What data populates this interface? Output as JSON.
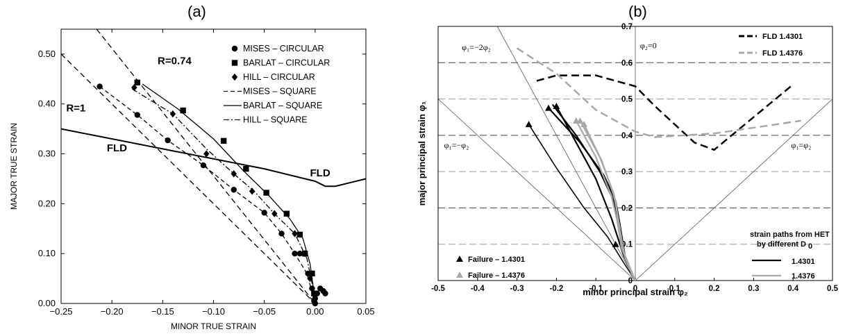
{
  "panels": {
    "a_label": "(a)",
    "b_label": "(b)"
  },
  "chart_data": [
    {
      "type": "scatter",
      "panel": "(a)",
      "xlabel": "MINOR TRUE STRAIN",
      "ylabel": "MAJOR TRUE STRAIN",
      "xlim": [
        -0.25,
        0.05
      ],
      "ylim": [
        0.0,
        0.55
      ],
      "xticks": [
        "−0.25",
        "−0.20",
        "−0.15",
        "−0.10",
        "−0.05",
        "0.00",
        "0.05"
      ],
      "xtick_values": [
        -0.25,
        -0.2,
        -0.15,
        -0.1,
        -0.05,
        0.0,
        0.05
      ],
      "yticks": [
        "0.00",
        "0.10",
        "0.20",
        "0.30",
        "0.40",
        "0.50"
      ],
      "ytick_values": [
        0.0,
        0.1,
        0.2,
        0.3,
        0.4,
        0.5
      ],
      "grid": false,
      "legend_placement": "top-right",
      "annotations": [
        {
          "text": "R=0.74",
          "x": -0.155,
          "y": 0.48
        },
        {
          "text": "R=1",
          "x": -0.245,
          "y": 0.385
        },
        {
          "text": "FLD",
          "x": -0.205,
          "y": 0.305
        },
        {
          "text": "FLD",
          "x": -0.005,
          "y": 0.255
        }
      ],
      "series": [
        {
          "name": "MISES – CIRCULAR",
          "kind": "marker",
          "marker": "circle",
          "points": [
            [
              -0.212,
              0.435
            ],
            [
              -0.175,
              0.378
            ],
            [
              -0.145,
              0.327
            ],
            [
              -0.11,
              0.277
            ],
            [
              -0.08,
              0.228
            ],
            [
              -0.05,
              0.182
            ],
            [
              -0.033,
              0.14
            ],
            [
              -0.02,
              0.1
            ],
            [
              -0.015,
              0.1
            ],
            [
              -0.01,
              0.1
            ],
            [
              -0.007,
              0.06
            ],
            [
              -0.003,
              0.03
            ],
            [
              0.0,
              0.01
            ],
            [
              0.0,
              0.0
            ],
            [
              0.002,
              0.02
            ],
            [
              0.005,
              0.03
            ],
            [
              0.008,
              0.025
            ],
            [
              0.01,
              0.02
            ],
            [
              -0.001,
              0.005
            ]
          ]
        },
        {
          "name": "BARLAT – CIRCULAR",
          "kind": "marker",
          "marker": "square",
          "points": [
            [
              -0.175,
              0.443
            ],
            [
              -0.13,
              0.387
            ],
            [
              -0.09,
              0.326
            ],
            [
              -0.068,
              0.27
            ],
            [
              -0.048,
              0.222
            ],
            [
              -0.028,
              0.18
            ],
            [
              -0.015,
              0.138
            ],
            [
              -0.01,
              0.1
            ],
            [
              -0.003,
              0.06
            ],
            [
              -0.001,
              0.02
            ]
          ]
        },
        {
          "name": "HILL – CIRCULAR",
          "kind": "marker",
          "marker": "diamond",
          "points": [
            [
              -0.178,
              0.433
            ],
            [
              -0.14,
              0.38
            ],
            [
              -0.107,
              0.3
            ],
            [
              -0.08,
              0.26
            ],
            [
              -0.062,
              0.225
            ],
            [
              -0.04,
              0.18
            ],
            [
              -0.02,
              0.14
            ],
            [
              -0.01,
              0.1
            ],
            [
              -0.005,
              0.05
            ]
          ]
        },
        {
          "name": "MISES – SQUARE",
          "kind": "line",
          "dash": "6,4",
          "points": [
            [
              -0.212,
              0.435
            ],
            [
              -0.175,
              0.378
            ],
            [
              -0.145,
              0.327
            ],
            [
              -0.11,
              0.277
            ],
            [
              -0.08,
              0.228
            ],
            [
              -0.05,
              0.182
            ],
            [
              -0.033,
              0.14
            ],
            [
              -0.02,
              0.1
            ],
            [
              -0.008,
              0.06
            ],
            [
              0.0,
              0.0
            ]
          ]
        },
        {
          "name": "BARLAT – SQUARE",
          "kind": "line",
          "dash": "",
          "points": [
            [
              -0.17,
              0.44
            ],
            [
              -0.135,
              0.39
            ],
            [
              -0.1,
              0.33
            ],
            [
              -0.07,
              0.265
            ],
            [
              -0.045,
              0.215
            ],
            [
              -0.025,
              0.17
            ],
            [
              -0.012,
              0.13
            ],
            [
              -0.005,
              0.08
            ],
            [
              -0.001,
              0.02
            ]
          ]
        },
        {
          "name": "HILL – SQUARE",
          "kind": "line",
          "dash": "8,3,2,3",
          "points": [
            [
              -0.18,
              0.43
            ],
            [
              -0.14,
              0.38
            ],
            [
              -0.107,
              0.31
            ],
            [
              -0.08,
              0.26
            ],
            [
              -0.06,
              0.225
            ],
            [
              -0.04,
              0.18
            ],
            [
              -0.02,
              0.14
            ],
            [
              -0.008,
              0.09
            ],
            [
              -0.002,
              0.03
            ]
          ]
        },
        {
          "name": "",
          "kind": "line",
          "dash": "8,5",
          "role": "R=1 limit",
          "points": [
            [
              -0.25,
              0.5
            ],
            [
              0.0,
              0.0
            ]
          ]
        },
        {
          "name": "",
          "kind": "line",
          "dash": "8,5",
          "role": "R=0.74 limit",
          "points": [
            [
              -0.215,
              0.55
            ],
            [
              0.0,
              0.0
            ]
          ]
        },
        {
          "name": "",
          "kind": "line",
          "dash": "",
          "role": "FLD",
          "width": 2,
          "points": [
            [
              -0.25,
              0.35
            ],
            [
              -0.15,
              0.31
            ],
            [
              -0.05,
              0.27
            ],
            [
              0.0,
              0.245
            ],
            [
              0.01,
              0.235
            ],
            [
              0.02,
              0.235
            ],
            [
              0.05,
              0.25
            ]
          ]
        }
      ]
    },
    {
      "type": "line",
      "panel": "(b)",
      "xlabel": "minor principal strain φ₂",
      "ylabel": "major principal strain φ₁",
      "xlim": [
        -0.5,
        0.5
      ],
      "ylim": [
        0.0,
        0.7
      ],
      "xticks": [
        "-0.5",
        "-0.4",
        "-0.3",
        "-0.2",
        "-0.1",
        "0",
        "0.1",
        "0.2",
        "0.3",
        "0.4",
        "0.5"
      ],
      "xtick_values": [
        -0.5,
        -0.4,
        -0.3,
        -0.2,
        -0.1,
        0.0,
        0.1,
        0.2,
        0.3,
        0.4,
        0.5
      ],
      "yticks": [
        "0",
        "0.1",
        "0.2",
        "0.3",
        "0.4",
        "0.5",
        "0.6",
        "0.7"
      ],
      "ytick_values": [
        0.0,
        0.1,
        0.2,
        0.3,
        0.4,
        0.5,
        0.6,
        0.7
      ],
      "grid": true,
      "legend_placement": "top-right",
      "reference_labels": {
        "uniaxial": "φ₁=−2φ₂",
        "plane": "φ₂=0",
        "shear": "φ₁=−φ₂",
        "biaxial": "φ₁=φ₂"
      },
      "legend": {
        "fld1": "FLD 1.4301",
        "fld2": "FLD 1.4376",
        "paths_title": "strain paths from HET",
        "paths_title2": "by different D",
        "paths_sub": "0",
        "path1": "1.4301",
        "path2": "1.4376",
        "fail1": "Failure – 1.4301",
        "fail2": "Failure – 1.4376"
      },
      "colors": {
        "black": "#000000",
        "grey": "#a8a8a8"
      },
      "series": [
        {
          "name": "FLD 1.4301",
          "kind": "line",
          "color": "#000000",
          "dash": "11,6",
          "width": 2.5,
          "points": [
            [
              -0.25,
              0.55
            ],
            [
              -0.2,
              0.565
            ],
            [
              -0.1,
              0.565
            ],
            [
              0.0,
              0.535
            ],
            [
              0.05,
              0.48
            ],
            [
              0.1,
              0.43
            ],
            [
              0.15,
              0.38
            ],
            [
              0.2,
              0.36
            ],
            [
              0.3,
              0.45
            ],
            [
              0.4,
              0.54
            ]
          ]
        },
        {
          "name": "FLD 1.4376",
          "kind": "line",
          "color": "#a8a8a8",
          "dash": "11,6",
          "width": 2.5,
          "points": [
            [
              -0.3,
              0.64
            ],
            [
              -0.2,
              0.57
            ],
            [
              -0.1,
              0.47
            ],
            [
              0.0,
              0.41
            ],
            [
              0.05,
              0.395
            ],
            [
              0.2,
              0.405
            ],
            [
              0.42,
              0.44
            ]
          ]
        },
        {
          "name": "1.4301",
          "kind": "line",
          "color": "#000000",
          "width": 1.6,
          "points": [
            [
              -0.27,
              0.43
            ],
            [
              -0.2,
              0.31
            ],
            [
              -0.13,
              0.2
            ],
            [
              -0.07,
              0.12
            ],
            [
              -0.03,
              0.05
            ],
            [
              0.0,
              0.0
            ]
          ]
        },
        {
          "name": "1.4301",
          "kind": "line",
          "color": "#000000",
          "width": 2.2,
          "points": [
            [
              -0.2,
              0.48
            ],
            [
              -0.15,
              0.38
            ],
            [
              -0.1,
              0.28
            ],
            [
              -0.06,
              0.17
            ],
            [
              -0.03,
              0.07
            ],
            [
              0.0,
              0.0
            ]
          ]
        },
        {
          "name": "1.4301",
          "kind": "line",
          "color": "#000000",
          "width": 2.2,
          "points": [
            [
              -0.21,
              0.485
            ],
            [
              -0.15,
              0.4
            ],
            [
              -0.09,
              0.3
            ],
            [
              -0.055,
              0.22
            ],
            [
              -0.045,
              0.16
            ],
            [
              -0.03,
              0.07
            ],
            [
              0.0,
              0.0
            ]
          ]
        },
        {
          "name": "1.4301",
          "kind": "line",
          "color": "#000000",
          "width": 2.2,
          "points": [
            [
              -0.22,
              0.475
            ],
            [
              -0.14,
              0.38
            ],
            [
              -0.08,
              0.29
            ],
            [
              -0.05,
              0.22
            ],
            [
              -0.04,
              0.16
            ],
            [
              -0.025,
              0.06
            ],
            [
              0.0,
              0.0
            ]
          ]
        },
        {
          "name": "1.4376",
          "kind": "line",
          "color": "#a8a8a8",
          "width": 2.2,
          "points": [
            [
              -0.15,
              0.44
            ],
            [
              -0.1,
              0.34
            ],
            [
              -0.06,
              0.23
            ],
            [
              -0.045,
              0.16
            ],
            [
              -0.035,
              0.09
            ],
            [
              -0.01,
              0.02
            ],
            [
              0.0,
              0.0
            ]
          ]
        },
        {
          "name": "1.4376",
          "kind": "line",
          "color": "#a8a8a8",
          "width": 2.2,
          "points": [
            [
              -0.14,
              0.44
            ],
            [
              -0.09,
              0.34
            ],
            [
              -0.055,
              0.24
            ],
            [
              -0.04,
              0.15
            ],
            [
              -0.03,
              0.08
            ],
            [
              0.0,
              0.0
            ]
          ]
        },
        {
          "name": "1.4376",
          "kind": "line",
          "color": "#a8a8a8",
          "width": 2.2,
          "points": [
            [
              -0.13,
              0.43
            ],
            [
              -0.085,
              0.33
            ],
            [
              -0.05,
              0.22
            ],
            [
              -0.04,
              0.14
            ],
            [
              -0.025,
              0.06
            ],
            [
              0.0,
              0.0
            ]
          ]
        },
        {
          "name": "Failure – 1.4301",
          "kind": "marker",
          "marker": "triangle",
          "color": "#000000",
          "points": [
            [
              -0.27,
              0.43
            ],
            [
              -0.22,
              0.475
            ],
            [
              -0.2,
              0.48
            ],
            [
              -0.05,
              0.1
            ]
          ]
        },
        {
          "name": "Failure – 1.4376",
          "kind": "marker",
          "marker": "triangle",
          "color": "#a8a8a8",
          "points": [
            [
              -0.15,
              0.44
            ],
            [
              -0.14,
              0.44
            ],
            [
              -0.13,
              0.43
            ]
          ]
        }
      ]
    }
  ]
}
